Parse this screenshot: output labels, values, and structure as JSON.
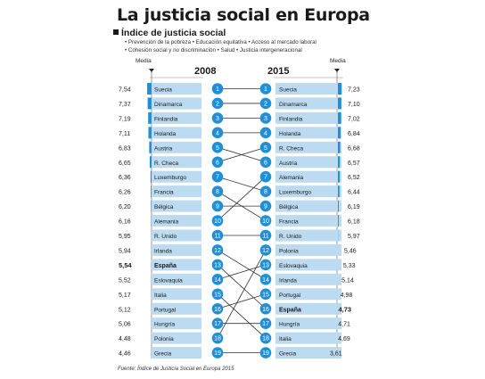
{
  "title": "La justicia social en Europa",
  "subtitle": "Índice de justicia social",
  "criteria_line1": "• Prevención de la pobreza • Educación equitativa • Acceso al mercado laboral",
  "criteria_line2": "• Cohesión social y no discriminación • Salud • Justicia intergeneracional",
  "media_label": "Media",
  "year_left": "2008",
  "year_right": "2015",
  "source": "Fuente: Índice de Justicia Social en Europa 2015",
  "colors": {
    "accent": "#1e90d8",
    "bar_light": "#bcdaf0",
    "line": "#333333",
    "text": "#1a1a1a"
  },
  "chart_data": [
    {
      "type": "bar",
      "title": "2008",
      "categories": [
        "Suecia",
        "Dinamarca",
        "Finlandia",
        "Holanda",
        "Austria",
        "R. Checa",
        "Luxemburgo",
        "Francia",
        "Bélgica",
        "Alemania",
        "R. Unido",
        "Irlanda",
        "España",
        "Eslovaquia",
        "Italia",
        "Portugal",
        "Hungría",
        "Polonia",
        "Grecia"
      ],
      "values": [
        7.54,
        7.37,
        7.19,
        7.11,
        6.83,
        6.65,
        6.36,
        6.26,
        6.2,
        6.16,
        5.95,
        5.94,
        5.54,
        5.52,
        5.17,
        5.12,
        5.06,
        4.48,
        4.46
      ],
      "value_labels": [
        "7,54",
        "7,37",
        "7,19",
        "7,11",
        "6,83",
        "6,65",
        "6,36",
        "6,26",
        "6,20",
        "6,16",
        "5,95",
        "5,94",
        "5,54",
        "5,52",
        "5,17",
        "5,12",
        "5,06",
        "4,48",
        "4,46"
      ],
      "ranks": [
        1,
        2,
        3,
        4,
        5,
        6,
        7,
        8,
        9,
        10,
        11,
        12,
        13,
        14,
        15,
        16,
        17,
        18,
        19
      ],
      "highlight": "España"
    },
    {
      "type": "bar",
      "title": "2015",
      "categories": [
        "Suecia",
        "Dinamarca",
        "Finlandia",
        "Holanda",
        "R. Checa",
        "Austria",
        "Alemania",
        "Luxemburgo",
        "Bélgica",
        "Francia",
        "R. Unido",
        "Polonia",
        "Eslovaquia",
        "Irlanda",
        "Portugal",
        "España",
        "Hungría",
        "Italia",
        "Grecia"
      ],
      "values": [
        7.23,
        7.1,
        7.02,
        6.84,
        6.68,
        6.57,
        6.52,
        6.44,
        6.19,
        6.18,
        5.97,
        5.46,
        5.33,
        5.14,
        4.98,
        4.73,
        4.71,
        4.69,
        3.61
      ],
      "value_labels": [
        "7,23",
        "7,10",
        "7,02",
        "6,84",
        "6,68",
        "6,57",
        "6,52",
        "6,44",
        "6,19",
        "6,18",
        "5,97",
        "5,46",
        "5,33",
        "5,14",
        "4,98",
        "4,73",
        "4,71",
        "4,69",
        "3,61"
      ],
      "ranks": [
        1,
        2,
        3,
        4,
        5,
        6,
        7,
        8,
        9,
        10,
        11,
        12,
        13,
        14,
        15,
        16,
        17,
        18,
        19
      ],
      "highlight": "España"
    }
  ]
}
